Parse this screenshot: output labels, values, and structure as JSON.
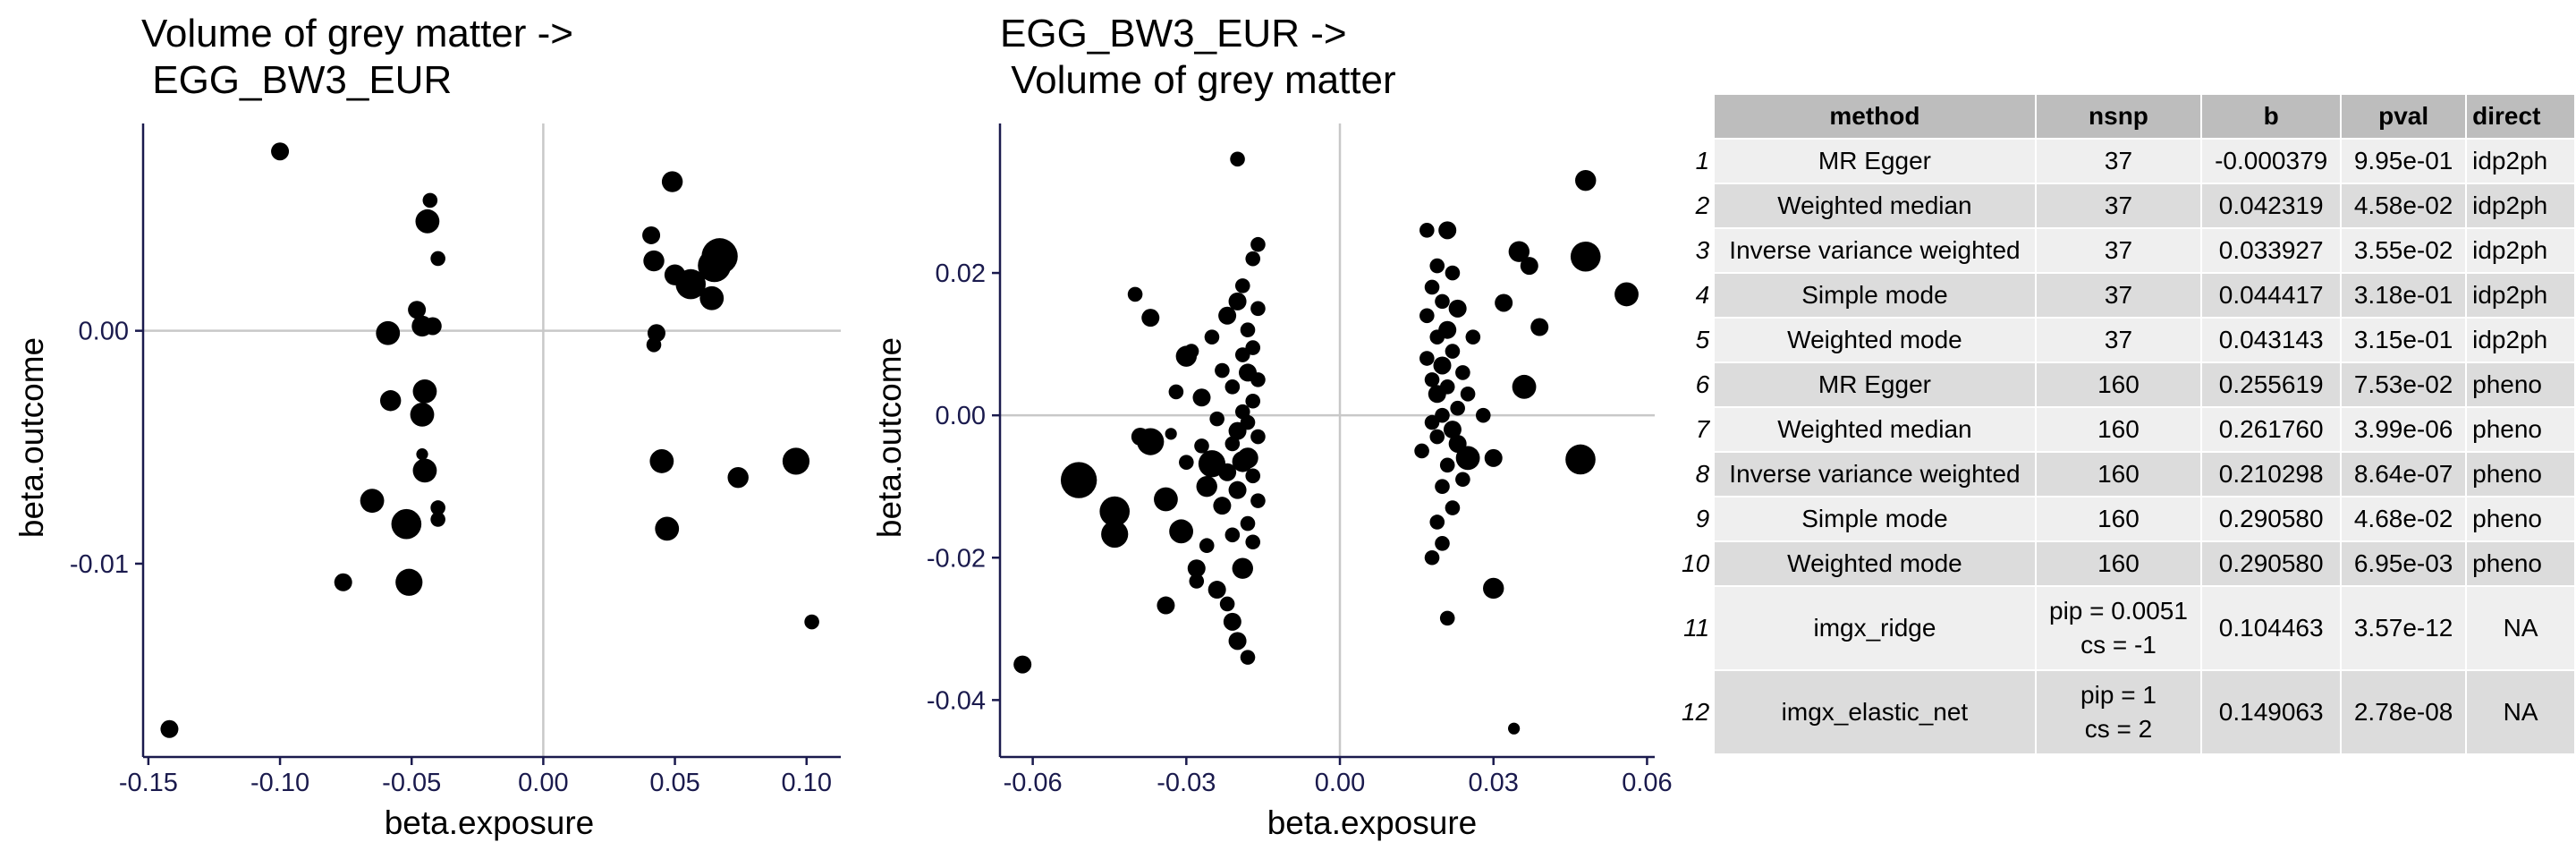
{
  "chart_data": [
    {
      "type": "scatter",
      "title_line1": "Volume of grey matter ->",
      "title_line2": "EGG_BW3_EUR",
      "xlabel": "beta.exposure",
      "ylabel": "beta.outcome",
      "xlim": [
        -0.152,
        0.113
      ],
      "ylim": [
        -0.0183,
        0.0089
      ],
      "xticks": [
        -0.15,
        -0.1,
        -0.05,
        0.0,
        0.05,
        0.1
      ],
      "xtick_labels": [
        "-0.15",
        "-0.10",
        "-0.05",
        "0.00",
        "0.05",
        "0.10"
      ],
      "yticks": [
        0.0,
        -0.01
      ],
      "ytick_labels": [
        "0.00",
        "-0.01"
      ],
      "grid": false,
      "reference_lines": {
        "x": 0,
        "y": 0
      },
      "points": [
        {
          "x": -0.1,
          "y": 0.0077,
          "s": 2
        },
        {
          "x": -0.142,
          "y": -0.0171,
          "s": 2
        },
        {
          "x": -0.076,
          "y": -0.0108,
          "s": 2
        },
        {
          "x": -0.065,
          "y": -0.0073,
          "s": 3
        },
        {
          "x": -0.059,
          "y": -0.0001,
          "s": 3
        },
        {
          "x": -0.058,
          "y": -0.003,
          "s": 2.5
        },
        {
          "x": -0.052,
          "y": -0.0083,
          "s": 4
        },
        {
          "x": -0.051,
          "y": -0.0108,
          "s": 3.5
        },
        {
          "x": -0.048,
          "y": 0.0009,
          "s": 2
        },
        {
          "x": -0.046,
          "y": 0.0002,
          "s": 2.5
        },
        {
          "x": -0.046,
          "y": -0.0036,
          "s": 3
        },
        {
          "x": -0.046,
          "y": -0.0053,
          "s": 1
        },
        {
          "x": -0.045,
          "y": -0.006,
          "s": 3
        },
        {
          "x": -0.045,
          "y": -0.0026,
          "s": 3
        },
        {
          "x": -0.044,
          "y": 0.0047,
          "s": 3
        },
        {
          "x": -0.043,
          "y": 0.0056,
          "s": 1.5
        },
        {
          "x": -0.042,
          "y": 0.0002,
          "s": 2
        },
        {
          "x": -0.04,
          "y": -0.0076,
          "s": 1.5
        },
        {
          "x": -0.04,
          "y": -0.0081,
          "s": 1.5
        },
        {
          "x": -0.04,
          "y": 0.0031,
          "s": 1.5
        },
        {
          "x": 0.041,
          "y": 0.0041,
          "s": 2
        },
        {
          "x": 0.042,
          "y": 0.003,
          "s": 2.5
        },
        {
          "x": 0.043,
          "y": -0.0001,
          "s": 2
        },
        {
          "x": 0.042,
          "y": -0.0006,
          "s": 1.5
        },
        {
          "x": 0.045,
          "y": -0.0056,
          "s": 3
        },
        {
          "x": 0.047,
          "y": -0.0085,
          "s": 3
        },
        {
          "x": 0.049,
          "y": 0.0064,
          "s": 2.5
        },
        {
          "x": 0.05,
          "y": 0.0024,
          "s": 2.5
        },
        {
          "x": 0.056,
          "y": 0.002,
          "s": 4
        },
        {
          "x": 0.064,
          "y": 0.0014,
          "s": 3
        },
        {
          "x": 0.065,
          "y": 0.0028,
          "s": 4.5
        },
        {
          "x": 0.067,
          "y": 0.0032,
          "s": 5
        },
        {
          "x": 0.074,
          "y": -0.0063,
          "s": 2.5
        },
        {
          "x": 0.096,
          "y": -0.0056,
          "s": 3.5
        },
        {
          "x": 0.102,
          "y": -0.0125,
          "s": 1.5
        }
      ]
    },
    {
      "type": "scatter",
      "title_line1": "EGG_BW3_EUR ->",
      "title_line2": "Volume of grey matter",
      "xlabel": "beta.exposure",
      "ylabel": "beta.outcome",
      "xlim": [
        -0.0664,
        0.0615
      ],
      "ylim": [
        -0.048,
        0.041
      ],
      "xticks": [
        -0.06,
        -0.03,
        0.0,
        0.03,
        0.06
      ],
      "xtick_labels": [
        "-0.06",
        "-0.03",
        "0.00",
        "0.03",
        "0.06"
      ],
      "yticks": [
        0.02,
        0.0,
        -0.02,
        -0.04
      ],
      "ytick_labels": [
        "0.02",
        "0.00",
        "-0.02",
        "-0.04"
      ],
      "grid": false,
      "reference_lines": {
        "x": 0,
        "y": 0
      },
      "points": [
        {
          "x": -0.062,
          "y": -0.035,
          "s": 2
        },
        {
          "x": -0.051,
          "y": -0.0091,
          "s": 5
        },
        {
          "x": -0.044,
          "y": -0.0135,
          "s": 4
        },
        {
          "x": -0.044,
          "y": -0.0167,
          "s": 3.5
        },
        {
          "x": -0.04,
          "y": 0.017,
          "s": 1.5
        },
        {
          "x": -0.039,
          "y": -0.003,
          "s": 2
        },
        {
          "x": -0.037,
          "y": -0.0037,
          "s": 3.5
        },
        {
          "x": -0.037,
          "y": 0.0137,
          "s": 2
        },
        {
          "x": -0.034,
          "y": -0.0267,
          "s": 2
        },
        {
          "x": -0.034,
          "y": -0.0118,
          "s": 3
        },
        {
          "x": -0.033,
          "y": -0.0026,
          "s": 1
        },
        {
          "x": -0.032,
          "y": 0.0033,
          "s": 1.5
        },
        {
          "x": -0.031,
          "y": -0.0163,
          "s": 3
        },
        {
          "x": -0.03,
          "y": -0.0066,
          "s": 1.5
        },
        {
          "x": -0.03,
          "y": 0.0083,
          "s": 2.5
        },
        {
          "x": -0.029,
          "y": 0.009,
          "s": 1.5
        },
        {
          "x": -0.028,
          "y": -0.0215,
          "s": 2
        },
        {
          "x": -0.028,
          "y": -0.0233,
          "s": 1.5
        },
        {
          "x": -0.027,
          "y": -0.0043,
          "s": 1.5
        },
        {
          "x": -0.027,
          "y": 0.0025,
          "s": 2
        },
        {
          "x": -0.026,
          "y": -0.01,
          "s": 2.5
        },
        {
          "x": -0.026,
          "y": -0.0183,
          "s": 1.5
        },
        {
          "x": -0.025,
          "y": -0.0068,
          "s": 3.5
        },
        {
          "x": -0.025,
          "y": 0.011,
          "s": 1.5
        },
        {
          "x": -0.024,
          "y": -0.0245,
          "s": 2
        },
        {
          "x": -0.024,
          "y": -0.0005,
          "s": 1.5
        },
        {
          "x": -0.023,
          "y": -0.0127,
          "s": 2
        },
        {
          "x": -0.023,
          "y": 0.0063,
          "s": 1.5
        },
        {
          "x": -0.022,
          "y": -0.0265,
          "s": 1.5
        },
        {
          "x": -0.022,
          "y": -0.008,
          "s": 2
        },
        {
          "x": -0.022,
          "y": 0.014,
          "s": 2
        },
        {
          "x": -0.021,
          "y": -0.0168,
          "s": 1.5
        },
        {
          "x": -0.021,
          "y": -0.029,
          "s": 2
        },
        {
          "x": -0.021,
          "y": -0.004,
          "s": 1.5
        },
        {
          "x": -0.021,
          "y": 0.004,
          "s": 1.5
        },
        {
          "x": -0.02,
          "y": -0.0317,
          "s": 2
        },
        {
          "x": -0.02,
          "y": -0.0105,
          "s": 2
        },
        {
          "x": -0.02,
          "y": -0.0022,
          "s": 2
        },
        {
          "x": -0.02,
          "y": 0.016,
          "s": 2
        },
        {
          "x": -0.02,
          "y": 0.036,
          "s": 1.5
        },
        {
          "x": -0.019,
          "y": -0.0215,
          "s": 2.5
        },
        {
          "x": -0.019,
          "y": -0.0065,
          "s": 2.5
        },
        {
          "x": -0.019,
          "y": 0.0005,
          "s": 1.5
        },
        {
          "x": -0.019,
          "y": 0.0085,
          "s": 1.5
        },
        {
          "x": -0.019,
          "y": 0.0182,
          "s": 1.5
        },
        {
          "x": -0.018,
          "y": -0.034,
          "s": 1.5
        },
        {
          "x": -0.018,
          "y": -0.0152,
          "s": 1.5
        },
        {
          "x": -0.018,
          "y": -0.006,
          "s": 2.5
        },
        {
          "x": -0.018,
          "y": -0.001,
          "s": 1.5
        },
        {
          "x": -0.018,
          "y": 0.006,
          "s": 2
        },
        {
          "x": -0.018,
          "y": 0.012,
          "s": 1.5
        },
        {
          "x": -0.017,
          "y": -0.0178,
          "s": 1.5
        },
        {
          "x": -0.017,
          "y": -0.0085,
          "s": 1.5
        },
        {
          "x": -0.017,
          "y": 0.002,
          "s": 1.5
        },
        {
          "x": -0.017,
          "y": 0.0095,
          "s": 1.5
        },
        {
          "x": -0.017,
          "y": 0.022,
          "s": 1.5
        },
        {
          "x": -0.016,
          "y": -0.012,
          "s": 1.5
        },
        {
          "x": -0.016,
          "y": -0.003,
          "s": 1.5
        },
        {
          "x": -0.016,
          "y": 0.005,
          "s": 1.5
        },
        {
          "x": -0.016,
          "y": 0.015,
          "s": 1.5
        },
        {
          "x": -0.016,
          "y": 0.024,
          "s": 1.5
        },
        {
          "x": 0.016,
          "y": -0.005,
          "s": 1.5
        },
        {
          "x": 0.017,
          "y": 0.008,
          "s": 1.5
        },
        {
          "x": 0.017,
          "y": 0.014,
          "s": 1.5
        },
        {
          "x": 0.017,
          "y": 0.026,
          "s": 1.5
        },
        {
          "x": 0.018,
          "y": -0.02,
          "s": 1.5
        },
        {
          "x": 0.018,
          "y": -0.001,
          "s": 1.5
        },
        {
          "x": 0.018,
          "y": 0.005,
          "s": 1.5
        },
        {
          "x": 0.018,
          "y": 0.018,
          "s": 1.5
        },
        {
          "x": 0.019,
          "y": -0.015,
          "s": 1.5
        },
        {
          "x": 0.019,
          "y": -0.003,
          "s": 1.5
        },
        {
          "x": 0.019,
          "y": 0.003,
          "s": 2
        },
        {
          "x": 0.019,
          "y": 0.011,
          "s": 1.5
        },
        {
          "x": 0.019,
          "y": 0.021,
          "s": 1.5
        },
        {
          "x": 0.02,
          "y": -0.018,
          "s": 1.5
        },
        {
          "x": 0.02,
          "y": -0.01,
          "s": 1.5
        },
        {
          "x": 0.02,
          "y": 0.0,
          "s": 1.5
        },
        {
          "x": 0.02,
          "y": 0.007,
          "s": 2
        },
        {
          "x": 0.02,
          "y": 0.016,
          "s": 1.5
        },
        {
          "x": 0.021,
          "y": -0.0285,
          "s": 1.5
        },
        {
          "x": 0.021,
          "y": -0.007,
          "s": 1.5
        },
        {
          "x": 0.021,
          "y": 0.004,
          "s": 1.5
        },
        {
          "x": 0.021,
          "y": 0.012,
          "s": 2
        },
        {
          "x": 0.021,
          "y": 0.026,
          "s": 2
        },
        {
          "x": 0.022,
          "y": -0.013,
          "s": 1.5
        },
        {
          "x": 0.022,
          "y": -0.002,
          "s": 2
        },
        {
          "x": 0.022,
          "y": 0.009,
          "s": 1.5
        },
        {
          "x": 0.022,
          "y": 0.02,
          "s": 1.5
        },
        {
          "x": 0.023,
          "y": -0.004,
          "s": 2
        },
        {
          "x": 0.023,
          "y": 0.001,
          "s": 1.5
        },
        {
          "x": 0.023,
          "y": 0.015,
          "s": 2
        },
        {
          "x": 0.024,
          "y": -0.009,
          "s": 1.5
        },
        {
          "x": 0.024,
          "y": 0.006,
          "s": 1.5
        },
        {
          "x": 0.025,
          "y": -0.006,
          "s": 3
        },
        {
          "x": 0.025,
          "y": 0.003,
          "s": 1.5
        },
        {
          "x": 0.026,
          "y": 0.011,
          "s": 1.5
        },
        {
          "x": 0.028,
          "y": 0.0,
          "s": 1.5
        },
        {
          "x": 0.03,
          "y": -0.006,
          "s": 2
        },
        {
          "x": 0.03,
          "y": -0.0243,
          "s": 2.5
        },
        {
          "x": 0.032,
          "y": 0.0158,
          "s": 2
        },
        {
          "x": 0.034,
          "y": -0.044,
          "s": 1
        },
        {
          "x": 0.035,
          "y": 0.023,
          "s": 2.5
        },
        {
          "x": 0.036,
          "y": 0.004,
          "s": 3
        },
        {
          "x": 0.037,
          "y": 0.021,
          "s": 2
        },
        {
          "x": 0.039,
          "y": 0.0124,
          "s": 2
        },
        {
          "x": 0.047,
          "y": -0.0062,
          "s": 4
        },
        {
          "x": 0.048,
          "y": 0.0223,
          "s": 4
        },
        {
          "x": 0.048,
          "y": 0.033,
          "s": 2.5
        },
        {
          "x": 0.056,
          "y": 0.017,
          "s": 3
        }
      ]
    },
    {
      "type": "table",
      "columns": [
        "method",
        "nsnp",
        "b",
        "pval",
        "direct"
      ],
      "rows": [
        {
          "n": "1",
          "method": "MR Egger",
          "nsnp": "37",
          "b": "-0.000379",
          "pval": "9.95e-01",
          "direct": "idp2ph"
        },
        {
          "n": "2",
          "method": "Weighted median",
          "nsnp": "37",
          "b": "0.042319",
          "pval": "4.58e-02",
          "direct": "idp2ph"
        },
        {
          "n": "3",
          "method": "Inverse variance weighted",
          "nsnp": "37",
          "b": "0.033927",
          "pval": "3.55e-02",
          "direct": "idp2ph"
        },
        {
          "n": "4",
          "method": "Simple mode",
          "nsnp": "37",
          "b": "0.044417",
          "pval": "3.18e-01",
          "direct": "idp2ph"
        },
        {
          "n": "5",
          "method": "Weighted mode",
          "nsnp": "37",
          "b": "0.043143",
          "pval": "3.15e-01",
          "direct": "idp2ph"
        },
        {
          "n": "6",
          "method": "MR Egger",
          "nsnp": "160",
          "b": "0.255619",
          "pval": "7.53e-02",
          "direct": "pheno"
        },
        {
          "n": "7",
          "method": "Weighted median",
          "nsnp": "160",
          "b": "0.261760",
          "pval": "3.99e-06",
          "direct": "pheno"
        },
        {
          "n": "8",
          "method": "Inverse variance weighted",
          "nsnp": "160",
          "b": "0.210298",
          "pval": "8.64e-07",
          "direct": "pheno"
        },
        {
          "n": "9",
          "method": "Simple mode",
          "nsnp": "160",
          "b": "0.290580",
          "pval": "4.68e-02",
          "direct": "pheno"
        },
        {
          "n": "10",
          "method": "Weighted mode",
          "nsnp": "160",
          "b": "0.290580",
          "pval": "6.95e-03",
          "direct": "pheno"
        },
        {
          "n": "11",
          "method": "imgx_ridge",
          "nsnp_line1": "pip = 0.0051",
          "nsnp_line2": "cs = -1",
          "b": "0.104463",
          "pval": "3.57e-12",
          "direct": "NA"
        },
        {
          "n": "12",
          "method": "imgx_elastic_net",
          "nsnp_line1": "pip = 1",
          "nsnp_line2": "cs = 2",
          "b": "0.149063",
          "pval": "2.78e-08",
          "direct": "NA"
        }
      ]
    }
  ]
}
